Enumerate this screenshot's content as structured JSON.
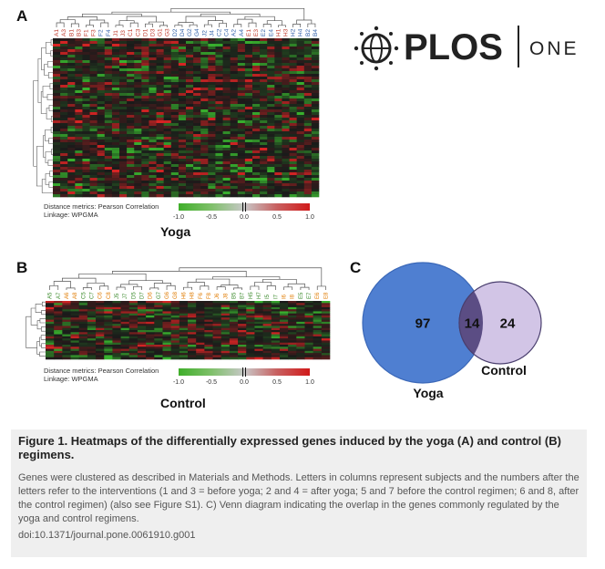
{
  "figure": {
    "panels": {
      "a": {
        "letter": "A",
        "title": "Yoga",
        "columns": [
          {
            "label": "A1",
            "color": "#c0392b"
          },
          {
            "label": "A3",
            "color": "#c0392b"
          },
          {
            "label": "B1",
            "color": "#c0392b"
          },
          {
            "label": "B3",
            "color": "#c0392b"
          },
          {
            "label": "F1",
            "color": "#c0392b"
          },
          {
            "label": "F3",
            "color": "#c0392b"
          },
          {
            "label": "F2",
            "color": "#2e5fa8"
          },
          {
            "label": "F4",
            "color": "#2e5fa8"
          },
          {
            "label": "J1",
            "color": "#c0392b"
          },
          {
            "label": "J3",
            "color": "#c0392b"
          },
          {
            "label": "C1",
            "color": "#c0392b"
          },
          {
            "label": "C3",
            "color": "#c0392b"
          },
          {
            "label": "D1",
            "color": "#c0392b"
          },
          {
            "label": "D3",
            "color": "#c0392b"
          },
          {
            "label": "G1",
            "color": "#c0392b"
          },
          {
            "label": "G3",
            "color": "#c0392b"
          },
          {
            "label": "D2",
            "color": "#2e5fa8"
          },
          {
            "label": "D4",
            "color": "#2e5fa8"
          },
          {
            "label": "G2",
            "color": "#2e5fa8"
          },
          {
            "label": "G4",
            "color": "#2e5fa8"
          },
          {
            "label": "J2",
            "color": "#2e5fa8"
          },
          {
            "label": "J4",
            "color": "#2e5fa8"
          },
          {
            "label": "C2",
            "color": "#2e5fa8"
          },
          {
            "label": "C4",
            "color": "#2e5fa8"
          },
          {
            "label": "A2",
            "color": "#2e5fa8"
          },
          {
            "label": "A4",
            "color": "#2e5fa8"
          },
          {
            "label": "E1",
            "color": "#c0392b"
          },
          {
            "label": "E3",
            "color": "#c0392b"
          },
          {
            "label": "E2",
            "color": "#2e5fa8"
          },
          {
            "label": "E4",
            "color": "#2e5fa8"
          },
          {
            "label": "H1",
            "color": "#c0392b"
          },
          {
            "label": "H3",
            "color": "#c0392b"
          },
          {
            "label": "H2",
            "color": "#2e5fa8"
          },
          {
            "label": "H4",
            "color": "#2e5fa8"
          },
          {
            "label": "B2",
            "color": "#2e5fa8"
          },
          {
            "label": "B4",
            "color": "#2e5fa8"
          }
        ],
        "meta_distance": "Distance metrics: Pearson Correlation",
        "meta_linkage": "Linkage: WPGMA",
        "color_scale_ticks": [
          "-1.0",
          "-0.5",
          "0.0",
          "0.5",
          "1.0"
        ]
      },
      "b": {
        "letter": "B",
        "title": "Control",
        "columns": [
          {
            "label": "A5",
            "color": "#3a8a2a"
          },
          {
            "label": "A7",
            "color": "#3a8a2a"
          },
          {
            "label": "A6",
            "color": "#e07b00"
          },
          {
            "label": "A8",
            "color": "#e07b00"
          },
          {
            "label": "C5",
            "color": "#3a8a2a"
          },
          {
            "label": "C7",
            "color": "#3a8a2a"
          },
          {
            "label": "C6",
            "color": "#e07b00"
          },
          {
            "label": "C8",
            "color": "#e07b00"
          },
          {
            "label": "J5",
            "color": "#3a8a2a"
          },
          {
            "label": "J7",
            "color": "#3a8a2a"
          },
          {
            "label": "D5",
            "color": "#3a8a2a"
          },
          {
            "label": "D7",
            "color": "#3a8a2a"
          },
          {
            "label": "D6",
            "color": "#e07b00"
          },
          {
            "label": "G7",
            "color": "#3a8a2a"
          },
          {
            "label": "G6",
            "color": "#e07b00"
          },
          {
            "label": "G8",
            "color": "#e07b00"
          },
          {
            "label": "H6",
            "color": "#e07b00"
          },
          {
            "label": "H8",
            "color": "#e07b00"
          },
          {
            "label": "F6",
            "color": "#e07b00"
          },
          {
            "label": "F8",
            "color": "#e07b00"
          },
          {
            "label": "J6",
            "color": "#e07b00"
          },
          {
            "label": "J8",
            "color": "#e07b00"
          },
          {
            "label": "B5",
            "color": "#3a8a2a"
          },
          {
            "label": "B7",
            "color": "#3a8a2a"
          },
          {
            "label": "H5",
            "color": "#3a8a2a"
          },
          {
            "label": "H7",
            "color": "#3a8a2a"
          },
          {
            "label": "I5",
            "color": "#3a8a2a"
          },
          {
            "label": "I7",
            "color": "#3a8a2a"
          },
          {
            "label": "I6",
            "color": "#e07b00"
          },
          {
            "label": "I8",
            "color": "#e07b00"
          },
          {
            "label": "E5",
            "color": "#3a8a2a"
          },
          {
            "label": "E7",
            "color": "#3a8a2a"
          },
          {
            "label": "E6",
            "color": "#e07b00"
          },
          {
            "label": "E8",
            "color": "#e07b00"
          }
        ],
        "meta_distance": "Distance metrics: Pearson Correlation",
        "meta_linkage": "Linkage: WPGMA",
        "color_scale_ticks": [
          "-1.0",
          "-0.5",
          "0.0",
          "0.5",
          "1.0"
        ]
      },
      "c": {
        "letter": "C",
        "yoga_only": "97",
        "overlap": "14",
        "control_only": "24",
        "yoga_label": "Yoga",
        "control_label": "Control",
        "yoga_color": "#4f7fd1",
        "control_color": "#d2c5e6",
        "overlap_color": "#5b4d84"
      }
    },
    "colors": {
      "negative": "#3fae2a",
      "neutral": "#1a1a1a",
      "positive": "#d11a1a"
    }
  },
  "logo": {
    "brand": "PLOS",
    "journal": "ONE"
  },
  "caption": {
    "title": "Figure 1. Heatmaps of the differentially expressed genes induced by the yoga (A) and control (B) regimens.",
    "body": "Genes were clustered as described in Materials and Methods. Letters in columns represent subjects and the numbers after the letters refer to the interventions (1 and 3 = before yoga; 2 and 4 = after yoga; 5 and 7 before the control regimen; 6 and 8, after the control regimen) (also see Figure S1). C) Venn diagram indicating the overlap in the genes commonly regulated by the yoga and control regimens.",
    "doi": "doi:10.1371/journal.pone.0061910.g001"
  }
}
